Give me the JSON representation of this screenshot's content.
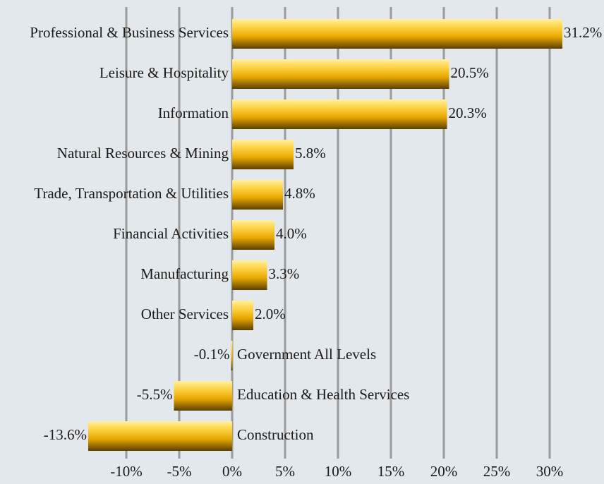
{
  "chart_data": {
    "type": "bar",
    "orientation": "horizontal",
    "categories": [
      "Professional & Business Services",
      "Leisure & Hospitality",
      "Information",
      "Natural Resources & Mining",
      "Trade, Transportation & Utilities",
      "Financial Activities",
      "Manufacturing",
      "Other Services",
      "Government All Levels",
      "Education & Health Services",
      "Construction"
    ],
    "values": [
      31.2,
      20.5,
      20.3,
      5.8,
      4.8,
      4.0,
      3.3,
      2.0,
      -0.1,
      -5.5,
      -13.6
    ],
    "value_labels": [
      "31.2%",
      "20.5%",
      "20.3%",
      "5.8%",
      "4.8%",
      "4.0%",
      "3.3%",
      "2.0%",
      "-0.1%",
      "-5.5%",
      "-13.6%"
    ],
    "color": "#f2b90f",
    "xlim": [
      -14,
      32
    ],
    "xticks": [
      {
        "value": -10,
        "label": "-10%"
      },
      {
        "value": -5,
        "label": "-5%"
      },
      {
        "value": 0,
        "label": "0%"
      },
      {
        "value": 5,
        "label": "5%"
      },
      {
        "value": 10,
        "label": "10%"
      },
      {
        "value": 15,
        "label": "15%"
      },
      {
        "value": 20,
        "label": "20%"
      },
      {
        "value": 25,
        "label": "25%"
      },
      {
        "value": 30,
        "label": "30%"
      }
    ],
    "grid": true
  }
}
